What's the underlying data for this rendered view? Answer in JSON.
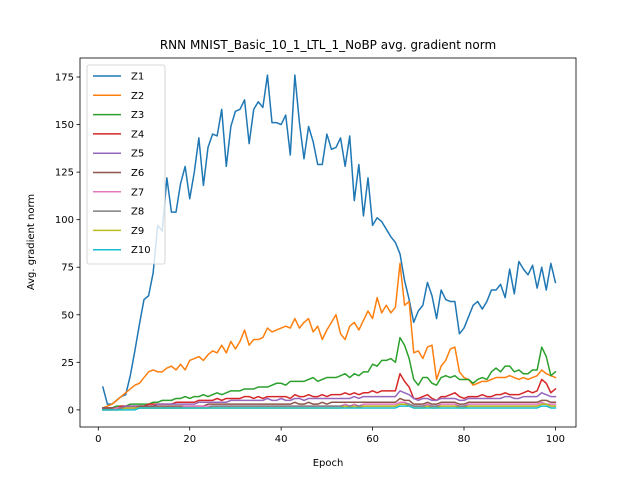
{
  "chart_data": {
    "type": "line",
    "title": "RNN MNIST_Basic_10_1_LTL_1_NoBP avg. gradient norm",
    "xlabel": "Epoch",
    "ylabel": "Avg. gradient norm",
    "xlim": [
      -4,
      104.5
    ],
    "ylim": [
      -9,
      185
    ],
    "xticks": [
      0,
      20,
      40,
      60,
      80,
      100
    ],
    "yticks": [
      0,
      25,
      50,
      75,
      100,
      125,
      150,
      175
    ],
    "grid": false,
    "legend_position": "top-left",
    "x_start": 1,
    "series": [
      {
        "name": "Z1",
        "color": "#1f77b4",
        "values": [
          12,
          3,
          3,
          5,
          7,
          8,
          18,
          31,
          45,
          58,
          60,
          72,
          97,
          94,
          122,
          104,
          104,
          119,
          128,
          111,
          125,
          143,
          118,
          138,
          145,
          144,
          158,
          128,
          149,
          157,
          158,
          163,
          140,
          158,
          162,
          159,
          176,
          151,
          151,
          150,
          155,
          134,
          176,
          151,
          132,
          149,
          141,
          129,
          129,
          145,
          137,
          138,
          143,
          128,
          144,
          110,
          129,
          102,
          122,
          97,
          101,
          99,
          95,
          91,
          88,
          82,
          68,
          58,
          46,
          52,
          55,
          67,
          60,
          48,
          63,
          58,
          57,
          57,
          40,
          43,
          49,
          55,
          57,
          53,
          57,
          63,
          63,
          66,
          59,
          74,
          61,
          78,
          74,
          71,
          76,
          64,
          75,
          63,
          77,
          67
        ]
      },
      {
        "name": "Z2",
        "color": "#ff7f0e",
        "values": [
          1,
          2,
          3,
          5,
          7,
          9,
          11,
          13,
          14,
          17,
          20,
          21,
          20,
          20,
          22,
          23,
          21,
          24,
          21,
          26,
          27,
          28,
          26,
          29,
          31,
          30,
          34,
          30,
          36,
          32,
          36,
          42,
          34,
          37,
          37,
          38,
          43,
          41,
          42,
          43,
          44,
          43,
          48,
          43,
          46,
          48,
          41,
          44,
          37,
          42,
          46,
          50,
          40,
          37,
          44,
          46,
          42,
          47,
          52,
          48,
          59,
          51,
          55,
          51,
          54,
          77,
          55,
          57,
          30,
          31,
          27,
          33,
          34,
          16,
          23,
          26,
          32,
          33,
          20,
          17,
          16,
          13,
          14,
          15,
          15,
          16,
          17,
          17,
          17,
          18,
          17,
          16,
          17,
          16,
          17,
          18,
          21,
          19,
          18,
          17
        ]
      },
      {
        "name": "Z3",
        "color": "#2ca02c",
        "values": [
          1,
          1,
          1,
          2,
          2,
          2,
          3,
          3,
          3,
          3,
          3,
          4,
          4,
          5,
          5,
          5,
          6,
          6,
          7,
          6,
          7,
          7,
          8,
          7,
          8,
          9,
          8,
          9,
          10,
          10,
          10,
          11,
          11,
          11,
          12,
          12,
          12,
          13,
          14,
          14,
          13,
          15,
          15,
          15,
          15,
          16,
          17,
          15,
          16,
          17,
          17,
          17,
          18,
          19,
          17,
          19,
          18,
          20,
          20,
          24,
          23,
          26,
          26,
          27,
          25,
          38,
          34,
          27,
          16,
          13,
          17,
          17,
          14,
          13,
          17,
          18,
          17,
          18,
          16,
          16,
          16,
          14,
          16,
          17,
          16,
          20,
          22,
          20,
          23,
          23,
          20,
          21,
          19,
          19,
          21,
          21,
          33,
          28,
          18,
          20
        ]
      },
      {
        "name": "Z4",
        "color": "#d62728",
        "values": [
          1,
          1,
          1,
          1,
          2,
          2,
          2,
          2,
          2,
          2,
          3,
          3,
          3,
          3,
          3,
          3,
          4,
          4,
          4,
          4,
          4,
          5,
          5,
          5,
          5,
          6,
          5,
          6,
          6,
          6,
          6,
          7,
          7,
          6,
          7,
          6,
          7,
          7,
          7,
          7,
          7,
          6,
          8,
          7,
          7,
          8,
          7,
          7,
          8,
          7,
          8,
          8,
          8,
          9,
          8,
          9,
          8,
          9,
          9,
          10,
          9,
          10,
          10,
          10,
          10,
          19,
          15,
          12,
          6,
          6,
          7,
          8,
          6,
          5,
          7,
          7,
          8,
          9,
          7,
          6,
          7,
          7,
          7,
          8,
          7,
          7,
          8,
          8,
          9,
          8,
          8,
          8,
          9,
          10,
          9,
          10,
          16,
          14,
          9,
          11
        ]
      },
      {
        "name": "Z5",
        "color": "#9467bd",
        "values": [
          1,
          1,
          1,
          1,
          1,
          2,
          2,
          2,
          2,
          2,
          2,
          2,
          3,
          3,
          3,
          3,
          3,
          3,
          3,
          3,
          3,
          4,
          4,
          4,
          4,
          4,
          4,
          4,
          5,
          5,
          5,
          5,
          5,
          5,
          5,
          5,
          6,
          5,
          5,
          6,
          5,
          5,
          6,
          6,
          5,
          6,
          6,
          6,
          6,
          6,
          6,
          6,
          6,
          6,
          6,
          7,
          6,
          7,
          7,
          7,
          7,
          7,
          7,
          7,
          7,
          10,
          9,
          8,
          6,
          5,
          6,
          6,
          5,
          5,
          6,
          6,
          6,
          6,
          5,
          5,
          6,
          6,
          6,
          6,
          6,
          6,
          6,
          6,
          7,
          7,
          6,
          6,
          7,
          7,
          7,
          7,
          9,
          8,
          7,
          7
        ]
      },
      {
        "name": "Z6",
        "color": "#8c564b",
        "values": [
          1,
          1,
          1,
          1,
          1,
          1,
          1,
          1,
          2,
          2,
          2,
          2,
          2,
          2,
          2,
          2,
          2,
          2,
          2,
          2,
          2,
          2,
          2,
          3,
          3,
          3,
          3,
          3,
          3,
          3,
          3,
          3,
          3,
          3,
          3,
          3,
          3,
          3,
          3,
          3,
          3,
          3,
          4,
          3,
          3,
          4,
          3,
          3,
          4,
          3,
          4,
          4,
          4,
          4,
          4,
          4,
          4,
          4,
          4,
          4,
          4,
          4,
          4,
          4,
          4,
          6,
          5,
          5,
          3,
          3,
          3,
          4,
          3,
          3,
          4,
          4,
          4,
          4,
          3,
          3,
          4,
          4,
          4,
          4,
          4,
          4,
          4,
          4,
          4,
          4,
          4,
          4,
          4,
          4,
          4,
          4,
          5,
          5,
          4,
          4
        ]
      },
      {
        "name": "Z7",
        "color": "#e377c2",
        "values": [
          0,
          0,
          0,
          1,
          1,
          1,
          1,
          1,
          1,
          1,
          1,
          1,
          1,
          1,
          1,
          1,
          1,
          1,
          2,
          2,
          2,
          2,
          2,
          2,
          2,
          2,
          2,
          2,
          2,
          2,
          2,
          2,
          2,
          2,
          2,
          2,
          2,
          2,
          2,
          2,
          2,
          2,
          2,
          2,
          2,
          2,
          2,
          2,
          2,
          2,
          2,
          2,
          2,
          3,
          2,
          3,
          2,
          3,
          3,
          3,
          3,
          3,
          3,
          3,
          3,
          4,
          4,
          3,
          2,
          2,
          2,
          3,
          2,
          2,
          3,
          3,
          3,
          3,
          2,
          2,
          3,
          3,
          3,
          3,
          3,
          3,
          3,
          3,
          3,
          3,
          3,
          3,
          3,
          3,
          3,
          3,
          4,
          3,
          3,
          3
        ]
      },
      {
        "name": "Z8",
        "color": "#7f7f7f",
        "values": [
          0,
          0,
          0,
          0,
          1,
          1,
          1,
          1,
          1,
          1,
          1,
          1,
          1,
          1,
          1,
          1,
          1,
          1,
          1,
          1,
          1,
          1,
          1,
          1,
          2,
          2,
          2,
          2,
          2,
          2,
          2,
          2,
          2,
          2,
          2,
          2,
          2,
          2,
          2,
          2,
          2,
          2,
          2,
          2,
          2,
          2,
          2,
          2,
          2,
          2,
          2,
          2,
          2,
          2,
          2,
          2,
          2,
          2,
          2,
          2,
          2,
          2,
          2,
          2,
          2,
          3,
          3,
          3,
          2,
          2,
          2,
          2,
          2,
          2,
          2,
          2,
          2,
          2,
          2,
          2,
          2,
          2,
          2,
          2,
          2,
          2,
          2,
          2,
          2,
          2,
          2,
          2,
          2,
          2,
          2,
          2,
          3,
          3,
          2,
          2
        ]
      },
      {
        "name": "Z9",
        "color": "#bcbd22",
        "values": [
          0,
          0,
          0,
          0,
          0,
          1,
          1,
          1,
          1,
          1,
          1,
          1,
          1,
          1,
          1,
          1,
          1,
          1,
          1,
          1,
          1,
          1,
          1,
          1,
          1,
          1,
          1,
          1,
          1,
          1,
          1,
          1,
          1,
          1,
          1,
          1,
          1,
          1,
          1,
          1,
          1,
          1,
          1,
          1,
          1,
          1,
          1,
          1,
          1,
          1,
          1,
          1,
          1,
          2,
          1,
          2,
          1,
          2,
          2,
          2,
          2,
          2,
          2,
          2,
          2,
          3,
          3,
          2,
          1,
          1,
          1,
          2,
          1,
          1,
          2,
          2,
          2,
          2,
          1,
          1,
          2,
          2,
          2,
          2,
          2,
          2,
          2,
          2,
          2,
          2,
          2,
          2,
          2,
          2,
          2,
          2,
          3,
          3,
          2,
          2
        ]
      },
      {
        "name": "Z10",
        "color": "#17becf",
        "values": [
          0,
          0,
          0,
          0,
          0,
          0,
          0,
          0,
          1,
          1,
          1,
          1,
          1,
          1,
          1,
          1,
          1,
          1,
          1,
          1,
          1,
          1,
          1,
          1,
          1,
          1,
          1,
          1,
          1,
          1,
          1,
          1,
          1,
          1,
          1,
          1,
          1,
          1,
          1,
          1,
          1,
          1,
          1,
          1,
          1,
          1,
          1,
          1,
          1,
          1,
          1,
          1,
          1,
          1,
          1,
          1,
          1,
          1,
          1,
          1,
          1,
          1,
          1,
          1,
          1,
          2,
          2,
          2,
          1,
          1,
          1,
          1,
          1,
          1,
          1,
          1,
          1,
          1,
          1,
          1,
          1,
          1,
          1,
          1,
          1,
          1,
          1,
          1,
          1,
          1,
          1,
          1,
          1,
          1,
          1,
          1,
          2,
          2,
          1,
          1
        ]
      }
    ]
  }
}
